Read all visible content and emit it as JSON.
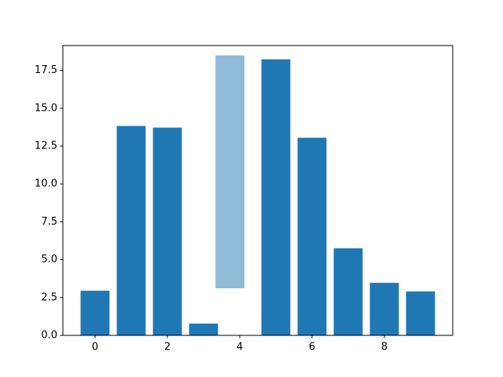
{
  "chart_data": {
    "type": "bar",
    "color": "#1f77b4",
    "x": [
      0,
      1,
      2,
      3,
      4,
      5,
      6,
      7,
      8,
      9
    ],
    "values": [
      2.95,
      13.83,
      13.72,
      0.78,
      null,
      18.23,
      13.05,
      5.75,
      3.47,
      2.9
    ],
    "bar_width": 0.8,
    "dragged": {
      "x": 3.73,
      "bottom": 3.11,
      "value": 15.38,
      "color": "#8fbbd9"
    },
    "xlim": [
      -0.89,
      9.89
    ],
    "xticks": [
      0,
      2,
      4,
      6,
      8
    ],
    "ylim": [
      0,
      19.14
    ],
    "yticks": [
      {
        "value": 0,
        "label": "0.0"
      },
      {
        "value": 2.5,
        "label": "2.5"
      },
      {
        "value": 5,
        "label": "5.0"
      },
      {
        "value": 7.5,
        "label": "7.5"
      },
      {
        "value": 10,
        "label": "10.0"
      },
      {
        "value": 12.5,
        "label": "12.5"
      },
      {
        "value": 15,
        "label": "15.0"
      },
      {
        "value": 17.5,
        "label": "17.5"
      }
    ]
  }
}
